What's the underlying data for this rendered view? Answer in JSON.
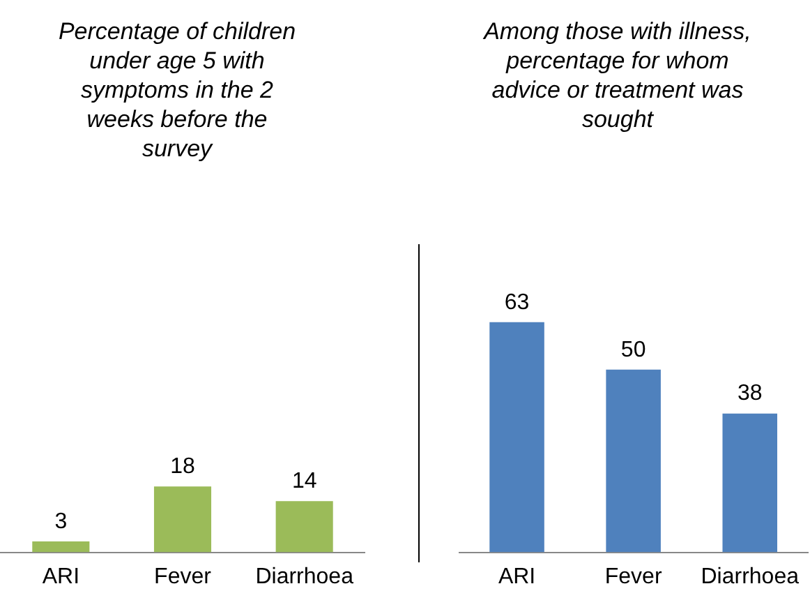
{
  "chart_data": [
    {
      "type": "bar",
      "title": "Percentage of children under age 5 with symptoms in the 2 weeks before the survey",
      "categories": [
        "ARI",
        "Fever",
        "Diarrhoea"
      ],
      "values": [
        3,
        18,
        14
      ],
      "color": "#9bbb59",
      "data_labels": true,
      "grid": false,
      "legend": false
    },
    {
      "type": "bar",
      "title": "Among those with illness, percentage for whom advice or treatment was sought",
      "categories": [
        "ARI",
        "Fever",
        "Diarrhoea"
      ],
      "values": [
        63,
        50,
        38
      ],
      "color": "#4f81bd",
      "data_labels": true,
      "grid": false,
      "legend": false
    }
  ]
}
